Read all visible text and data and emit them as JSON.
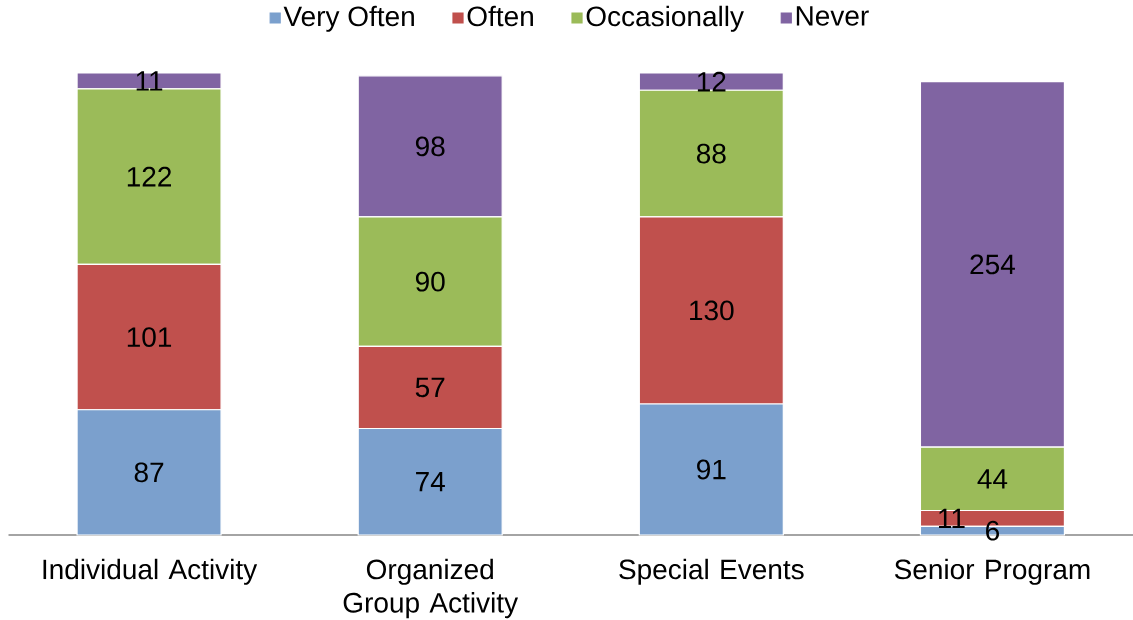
{
  "chart_data": {
    "type": "bar",
    "stacked": true,
    "categories": [
      "Individual Activity",
      "Organized Group Activity",
      "Special Events",
      "Senior Program"
    ],
    "series": [
      {
        "name": "Very Often",
        "color": "#7ba0cd",
        "values": [
          87,
          74,
          91,
          6
        ]
      },
      {
        "name": "Often",
        "color": "#c0504d",
        "values": [
          101,
          57,
          130,
          11
        ]
      },
      {
        "name": "Occasionally",
        "color": "#9bbb59",
        "values": [
          122,
          90,
          88,
          44
        ]
      },
      {
        "name": "Never",
        "color": "#8064a2",
        "values": [
          11,
          98,
          12,
          254
        ]
      }
    ],
    "data_labels": true,
    "legend": "top",
    "tick_labels": "x"
  }
}
